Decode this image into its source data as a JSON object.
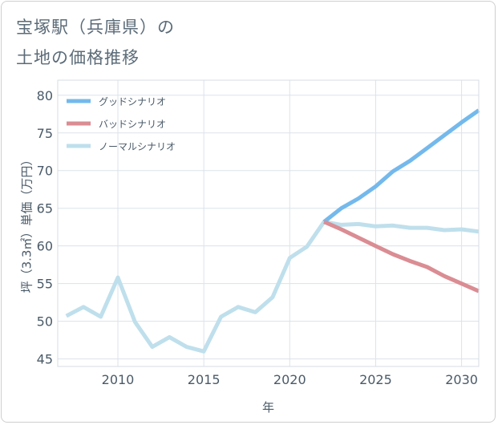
{
  "page": {
    "title_line1": "宝塚駅（兵庫県）の",
    "title_line2": "土地の価格推移"
  },
  "chart_data": {
    "type": "line",
    "xlabel": "年",
    "ylabel": "坪（3.3㎡）単価（万円）",
    "xlim": [
      2006.5,
      2031
    ],
    "ylim": [
      44,
      82
    ],
    "xticks": [
      2010,
      2015,
      2020,
      2025,
      2030
    ],
    "yticks": [
      45,
      50,
      55,
      60,
      65,
      70,
      75,
      80
    ],
    "legend_position": "top-left",
    "series": [
      {
        "name": "グッドシナリオ",
        "color": "#74b9ec",
        "x": [
          2022,
          2023,
          2024,
          2025,
          2026,
          2027,
          2028,
          2029,
          2030,
          2031
        ],
        "values": [
          63.2,
          65.0,
          66.3,
          67.9,
          69.9,
          71.3,
          73.0,
          74.7,
          76.4,
          78.0
        ]
      },
      {
        "name": "バッドシナリオ",
        "color": "#da8d93",
        "x": [
          2022,
          2023,
          2024,
          2025,
          2026,
          2027,
          2028,
          2029,
          2030,
          2031
        ],
        "values": [
          63.2,
          62.2,
          61.1,
          60.0,
          58.9,
          58.0,
          57.2,
          56.0,
          55.0,
          54.0
        ]
      },
      {
        "name": "ノーマルシナリオ",
        "color": "#bfdfec",
        "x": [
          2007,
          2008,
          2009,
          2010,
          2011,
          2012,
          2013,
          2014,
          2015,
          2016,
          2017,
          2018,
          2019,
          2020,
          2021,
          2022,
          2023,
          2024,
          2025,
          2026,
          2027,
          2028,
          2029,
          2030,
          2031
        ],
        "values": [
          50.7,
          51.9,
          50.6,
          55.8,
          49.9,
          46.6,
          47.9,
          46.6,
          46.0,
          50.6,
          51.9,
          51.2,
          53.2,
          58.4,
          59.9,
          63.2,
          62.8,
          62.9,
          62.6,
          62.7,
          62.4,
          62.4,
          62.1,
          62.2,
          61.9
        ]
      }
    ]
  }
}
